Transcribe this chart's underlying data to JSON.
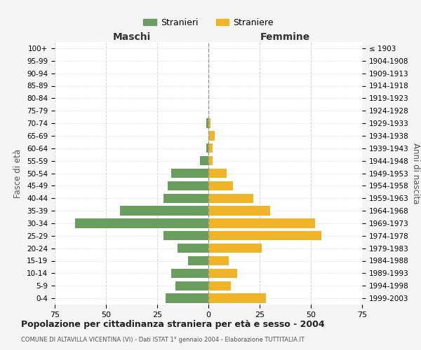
{
  "age_groups": [
    "100+",
    "95-99",
    "90-94",
    "85-89",
    "80-84",
    "75-79",
    "70-74",
    "65-69",
    "60-64",
    "55-59",
    "50-54",
    "45-49",
    "40-44",
    "35-39",
    "30-34",
    "25-29",
    "20-24",
    "15-19",
    "10-14",
    "5-9",
    "0-4"
  ],
  "birth_years": [
    "≤ 1903",
    "1904-1908",
    "1909-1913",
    "1914-1918",
    "1919-1923",
    "1924-1928",
    "1929-1933",
    "1934-1938",
    "1939-1943",
    "1944-1948",
    "1949-1953",
    "1954-1958",
    "1959-1963",
    "1964-1968",
    "1969-1973",
    "1974-1978",
    "1979-1983",
    "1984-1988",
    "1989-1993",
    "1994-1998",
    "1999-2003"
  ],
  "males": [
    0,
    0,
    0,
    0,
    0,
    0,
    1,
    0,
    1,
    4,
    18,
    20,
    22,
    43,
    65,
    22,
    15,
    10,
    18,
    16,
    21
  ],
  "females": [
    0,
    0,
    0,
    0,
    0,
    0,
    1,
    3,
    2,
    2,
    9,
    12,
    22,
    30,
    52,
    55,
    26,
    10,
    14,
    11,
    28
  ],
  "male_color": "#6a9e5e",
  "female_color": "#f0b429",
  "background_color": "#f5f5f5",
  "bar_background": "#ffffff",
  "grid_color": "#cccccc",
  "title": "Popolazione per cittadinanza straniera per età e sesso - 2004",
  "subtitle": "COMUNE DI ALTAVILLA VICENTINA (VI) - Dati ISTAT 1° gennaio 2004 - Elaborazione TUTTITALIA.IT",
  "xlabel_left": "Maschi",
  "xlabel_right": "Femmine",
  "ylabel_left": "Fasce di età",
  "ylabel_right": "Anni di nascita",
  "legend_male": "Stranieri",
  "legend_female": "Straniere",
  "xlim": 75,
  "bar_height": 0.75
}
